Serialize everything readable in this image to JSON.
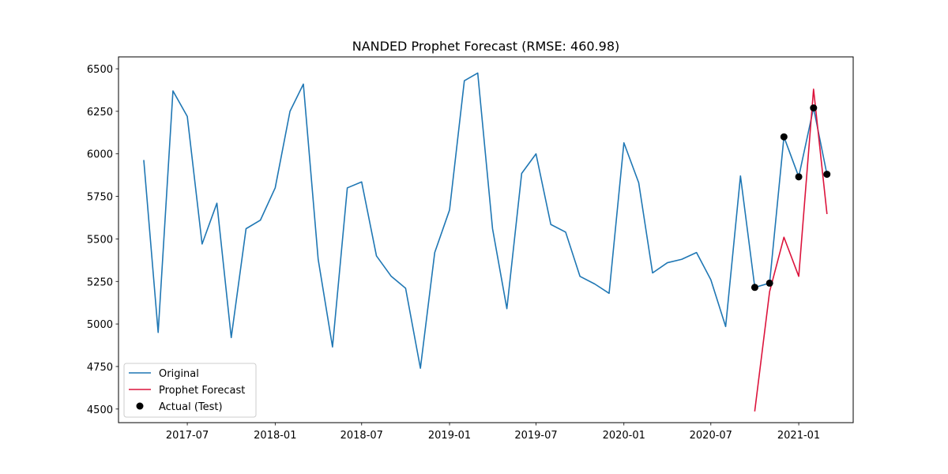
{
  "chart_data": {
    "type": "line",
    "title": "NANDED Prophet Forecast (RMSE: 460.98)",
    "xlabel": "",
    "ylabel": "",
    "ylim": [
      4420,
      6570
    ],
    "xlim": [
      "2017-02-07",
      "2021-04-25"
    ],
    "grid": false,
    "legend_position": "lower-left",
    "x_ticks": [
      {
        "date": "2017-07-01",
        "label": "2017-07"
      },
      {
        "date": "2018-01-01",
        "label": "2018-01"
      },
      {
        "date": "2018-07-01",
        "label": "2018-07"
      },
      {
        "date": "2019-01-01",
        "label": "2019-01"
      },
      {
        "date": "2019-07-01",
        "label": "2019-07"
      },
      {
        "date": "2020-01-01",
        "label": "2020-01"
      },
      {
        "date": "2020-07-01",
        "label": "2020-07"
      },
      {
        "date": "2021-01-01",
        "label": "2021-01"
      }
    ],
    "y_ticks": [
      4500,
      4750,
      5000,
      5250,
      5500,
      5750,
      6000,
      6250,
      6500
    ],
    "series": [
      {
        "name": "Original",
        "type": "line",
        "color": "#1f77b4",
        "x": [
          "2017-04-01",
          "2017-05-01",
          "2017-06-01",
          "2017-07-01",
          "2017-08-01",
          "2017-09-01",
          "2017-10-01",
          "2017-11-01",
          "2017-12-01",
          "2018-01-01",
          "2018-02-01",
          "2018-03-01",
          "2018-04-01",
          "2018-05-01",
          "2018-06-01",
          "2018-07-01",
          "2018-08-01",
          "2018-09-01",
          "2018-10-01",
          "2018-11-01",
          "2018-12-01",
          "2019-01-01",
          "2019-02-01",
          "2019-03-01",
          "2019-04-01",
          "2019-05-01",
          "2019-06-01",
          "2019-07-01",
          "2019-08-01",
          "2019-09-01",
          "2019-10-01",
          "2019-11-01",
          "2019-12-01",
          "2020-01-01",
          "2020-02-01",
          "2020-03-01",
          "2020-04-01",
          "2020-05-01",
          "2020-06-01",
          "2020-07-01",
          "2020-08-01",
          "2020-09-01",
          "2020-10-01",
          "2020-11-01",
          "2020-12-01",
          "2021-01-01",
          "2021-02-01",
          "2021-03-01"
        ],
        "y": [
          5960,
          4950,
          6370,
          6220,
          5470,
          5710,
          4920,
          5560,
          5610,
          5800,
          6250,
          6410,
          5380,
          4865,
          5800,
          5835,
          5400,
          5280,
          5210,
          4740,
          5420,
          5670,
          6430,
          6475,
          5560,
          5090,
          5885,
          6000,
          5585,
          5540,
          5280,
          5235,
          5180,
          6065,
          5830,
          5300,
          5360,
          5380,
          5420,
          5260,
          4985,
          5870,
          5215,
          5240,
          6100,
          5865,
          6270,
          5880
        ]
      },
      {
        "name": "Prophet Forecast",
        "type": "line",
        "color": "#dc143c",
        "x": [
          "2020-10-01",
          "2020-11-01",
          "2020-12-01",
          "2021-01-01",
          "2021-02-01",
          "2021-03-01"
        ],
        "y": [
          4490,
          5190,
          5510,
          5280,
          6380,
          5650
        ]
      },
      {
        "name": "Actual (Test)",
        "type": "scatter",
        "color": "#000000",
        "x": [
          "2020-10-01",
          "2020-11-01",
          "2020-12-01",
          "2021-01-01",
          "2021-02-01",
          "2021-03-01"
        ],
        "y": [
          5215,
          5240,
          6100,
          5865,
          6270,
          5880
        ]
      }
    ]
  }
}
